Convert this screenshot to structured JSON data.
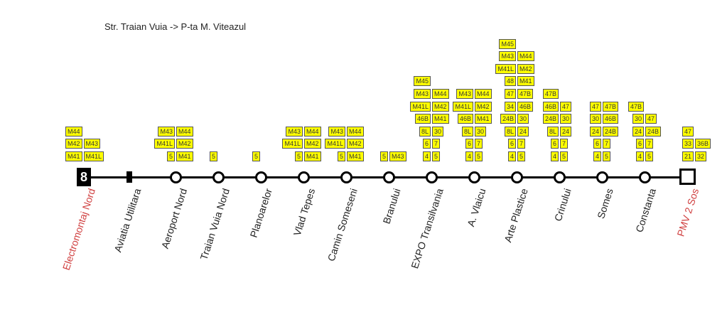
{
  "title": "Str. Traian Vuia -> P-ta M. Viteazul",
  "line_number": "8",
  "colors": {
    "box_fill": "#ffff00",
    "terminus_label": "#d04040"
  },
  "stations": [
    {
      "name": "Electromontaj Nord",
      "marker": "start",
      "terminus": true,
      "rows": [
        {
          "l": "M41",
          "r": "M41L"
        },
        {
          "l": "M42",
          "r": "M43"
        },
        {
          "l": "M44",
          "r": null
        }
      ],
      "anchor": "left"
    },
    {
      "name": "Aviatia Utilitara",
      "marker": "tick",
      "terminus": false,
      "rows": []
    },
    {
      "name": "Aeroport Nord",
      "marker": "circle",
      "terminus": false,
      "rows": [
        {
          "l": "5",
          "r": "M41"
        },
        {
          "l": "M41L",
          "r": "M42"
        },
        {
          "l": "M43",
          "r": "M44"
        }
      ]
    },
    {
      "name": "Traian Vuia Nord",
      "marker": "circle",
      "terminus": false,
      "rows": [
        {
          "l": "5",
          "r": null
        }
      ]
    },
    {
      "name": "Planoarelor",
      "marker": "circle",
      "terminus": false,
      "rows": [
        {
          "l": "5",
          "r": null
        }
      ]
    },
    {
      "name": "Vlad Tepes",
      "marker": "circle",
      "terminus": false,
      "rows": [
        {
          "l": "5",
          "r": "M41"
        },
        {
          "l": "M41L",
          "r": "M42"
        },
        {
          "l": "M43",
          "r": "M44"
        }
      ]
    },
    {
      "name": "Camin Someseni",
      "marker": "circle",
      "terminus": false,
      "rows": [
        {
          "l": "5",
          "r": "M41"
        },
        {
          "l": "M41L",
          "r": "M42"
        },
        {
          "l": "M43",
          "r": "M44"
        }
      ]
    },
    {
      "name": "Branului",
      "marker": "circle",
      "terminus": false,
      "rows": [
        {
          "l": "5",
          "r": "M43"
        }
      ]
    },
    {
      "name": "EXPO Transilvania",
      "marker": "circle",
      "terminus": false,
      "rows": [
        {
          "l": "4",
          "r": "5"
        },
        {
          "l": "6",
          "r": "7"
        },
        {
          "l": "8L",
          "r": "30"
        },
        {
          "l": "46B",
          "r": "M41"
        },
        {
          "l": "M41L",
          "r": "M42"
        },
        {
          "l": "M43",
          "r": "M44"
        },
        {
          "l": "M45",
          "r": null
        }
      ]
    },
    {
      "name": "A. Vlaicu",
      "marker": "circle",
      "terminus": false,
      "rows": [
        {
          "l": "4",
          "r": "5"
        },
        {
          "l": "6",
          "r": "7"
        },
        {
          "l": "8L",
          "r": "30"
        },
        {
          "l": "46B",
          "r": "M41"
        },
        {
          "l": "M41L",
          "r": "M42"
        },
        {
          "l": "M43",
          "r": "M44"
        }
      ]
    },
    {
      "name": "Arte Plastice",
      "marker": "circle",
      "terminus": false,
      "rows": [
        {
          "l": "4",
          "r": "5"
        },
        {
          "l": "6",
          "r": "7"
        },
        {
          "l": "8L",
          "r": "24"
        },
        {
          "l": "24B",
          "r": "30"
        },
        {
          "l": "34",
          "r": "46B"
        },
        {
          "l": "47",
          "r": "47B"
        },
        {
          "l": "48",
          "r": "M41"
        },
        {
          "l": "M41L",
          "r": "M42"
        },
        {
          "l": "M43",
          "r": "M44"
        },
        {
          "l": "M45",
          "r": null
        }
      ]
    },
    {
      "name": "Crinului",
      "marker": "circle",
      "terminus": false,
      "rows": [
        {
          "l": "4",
          "r": "5"
        },
        {
          "l": "6",
          "r": "7"
        },
        {
          "l": "8L",
          "r": "24"
        },
        {
          "l": "24B",
          "r": "30"
        },
        {
          "l": "46B",
          "r": "47"
        },
        {
          "l": "47B",
          "r": null
        }
      ]
    },
    {
      "name": "Somes",
      "marker": "circle",
      "terminus": false,
      "rows": [
        {
          "l": "4",
          "r": "5"
        },
        {
          "l": "6",
          "r": "7"
        },
        {
          "l": "24",
          "r": "24B"
        },
        {
          "l": "30",
          "r": "46B"
        },
        {
          "l": "47",
          "r": "47B"
        }
      ]
    },
    {
      "name": "Constanta",
      "marker": "circle",
      "terminus": false,
      "rows": [
        {
          "l": "4",
          "r": "5"
        },
        {
          "l": "6",
          "r": "7"
        },
        {
          "l": "24",
          "r": "24B"
        },
        {
          "l": "30",
          "r": "47"
        },
        {
          "l": "47B",
          "r": null
        }
      ]
    },
    {
      "name": "PMV 2 Sos",
      "marker": "end",
      "terminus": true,
      "rows": [
        {
          "l": "21",
          "r": "32"
        },
        {
          "l": "33",
          "r": "36B"
        },
        {
          "l": "47",
          "r": null
        }
      ],
      "anchor": "left"
    }
  ]
}
